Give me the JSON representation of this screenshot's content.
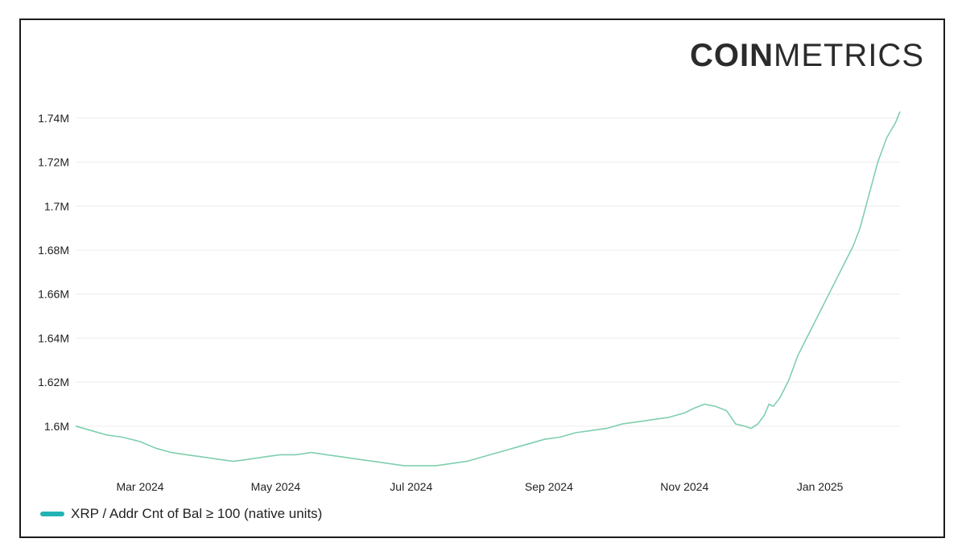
{
  "brand": {
    "bold": "COIN",
    "thin": "METRICS"
  },
  "colors": {
    "line": "#7fcfae",
    "legend": "#23b3b5",
    "grid": "#ececec"
  },
  "chart_data": {
    "type": "line",
    "title": "",
    "xlabel": "",
    "ylabel": "",
    "ylim": [
      1.578,
      1.748
    ],
    "xlim": [
      "2024-02-01",
      "2025-02-06"
    ],
    "y_ticks": [
      {
        "value": 1.6,
        "label": "1.6M"
      },
      {
        "value": 1.62,
        "label": "1.62M"
      },
      {
        "value": 1.64,
        "label": "1.64M"
      },
      {
        "value": 1.66,
        "label": "1.66M"
      },
      {
        "value": 1.68,
        "label": "1.68M"
      },
      {
        "value": 1.7,
        "label": "1.7M"
      },
      {
        "value": 1.72,
        "label": "1.72M"
      },
      {
        "value": 1.74,
        "label": "1.74M"
      }
    ],
    "x_ticks": [
      {
        "date": "2024-03-01",
        "label": "Mar 2024"
      },
      {
        "date": "2024-05-01",
        "label": "May 2024"
      },
      {
        "date": "2024-07-01",
        "label": "Jul 2024"
      },
      {
        "date": "2024-09-01",
        "label": "Sep 2024"
      },
      {
        "date": "2024-11-01",
        "label": "Nov 2024"
      },
      {
        "date": "2025-01-01",
        "label": "Jan 2025"
      }
    ],
    "grid": true,
    "legend_position": "bottom-left",
    "series": [
      {
        "name": "XRP / Addr Cnt of Bal ≥ 100 (native units)",
        "points": [
          [
            "2024-02-01",
            1.6
          ],
          [
            "2024-02-08",
            1.598
          ],
          [
            "2024-02-15",
            1.596
          ],
          [
            "2024-02-22",
            1.595
          ],
          [
            "2024-03-01",
            1.593
          ],
          [
            "2024-03-08",
            1.59
          ],
          [
            "2024-03-15",
            1.588
          ],
          [
            "2024-03-22",
            1.587
          ],
          [
            "2024-03-29",
            1.586
          ],
          [
            "2024-04-05",
            1.585
          ],
          [
            "2024-04-12",
            1.584
          ],
          [
            "2024-04-19",
            1.585
          ],
          [
            "2024-04-26",
            1.586
          ],
          [
            "2024-05-03",
            1.587
          ],
          [
            "2024-05-10",
            1.587
          ],
          [
            "2024-05-17",
            1.588
          ],
          [
            "2024-05-24",
            1.587
          ],
          [
            "2024-05-31",
            1.586
          ],
          [
            "2024-06-07",
            1.585
          ],
          [
            "2024-06-14",
            1.584
          ],
          [
            "2024-06-21",
            1.583
          ],
          [
            "2024-06-28",
            1.582
          ],
          [
            "2024-07-05",
            1.582
          ],
          [
            "2024-07-12",
            1.582
          ],
          [
            "2024-07-19",
            1.583
          ],
          [
            "2024-07-26",
            1.584
          ],
          [
            "2024-08-02",
            1.586
          ],
          [
            "2024-08-09",
            1.588
          ],
          [
            "2024-08-16",
            1.59
          ],
          [
            "2024-08-23",
            1.592
          ],
          [
            "2024-08-30",
            1.594
          ],
          [
            "2024-09-06",
            1.595
          ],
          [
            "2024-09-13",
            1.597
          ],
          [
            "2024-09-20",
            1.598
          ],
          [
            "2024-09-27",
            1.599
          ],
          [
            "2024-10-04",
            1.601
          ],
          [
            "2024-10-11",
            1.602
          ],
          [
            "2024-10-18",
            1.603
          ],
          [
            "2024-10-25",
            1.604
          ],
          [
            "2024-11-01",
            1.606
          ],
          [
            "2024-11-05",
            1.608
          ],
          [
            "2024-11-10",
            1.61
          ],
          [
            "2024-11-15",
            1.609
          ],
          [
            "2024-11-20",
            1.607
          ],
          [
            "2024-11-24",
            1.601
          ],
          [
            "2024-11-28",
            1.6
          ],
          [
            "2024-12-01",
            1.599
          ],
          [
            "2024-12-04",
            1.601
          ],
          [
            "2024-12-07",
            1.605
          ],
          [
            "2024-12-09",
            1.61
          ],
          [
            "2024-12-11",
            1.609
          ],
          [
            "2024-12-14",
            1.613
          ],
          [
            "2024-12-18",
            1.621
          ],
          [
            "2024-12-22",
            1.632
          ],
          [
            "2024-12-27",
            1.642
          ],
          [
            "2025-01-01",
            1.652
          ],
          [
            "2025-01-06",
            1.662
          ],
          [
            "2025-01-11",
            1.672
          ],
          [
            "2025-01-16",
            1.682
          ],
          [
            "2025-01-19",
            1.69
          ],
          [
            "2025-01-23",
            1.705
          ],
          [
            "2025-01-27",
            1.72
          ],
          [
            "2025-01-31",
            1.731
          ],
          [
            "2025-02-04",
            1.738
          ],
          [
            "2025-02-06",
            1.743
          ]
        ]
      }
    ]
  }
}
